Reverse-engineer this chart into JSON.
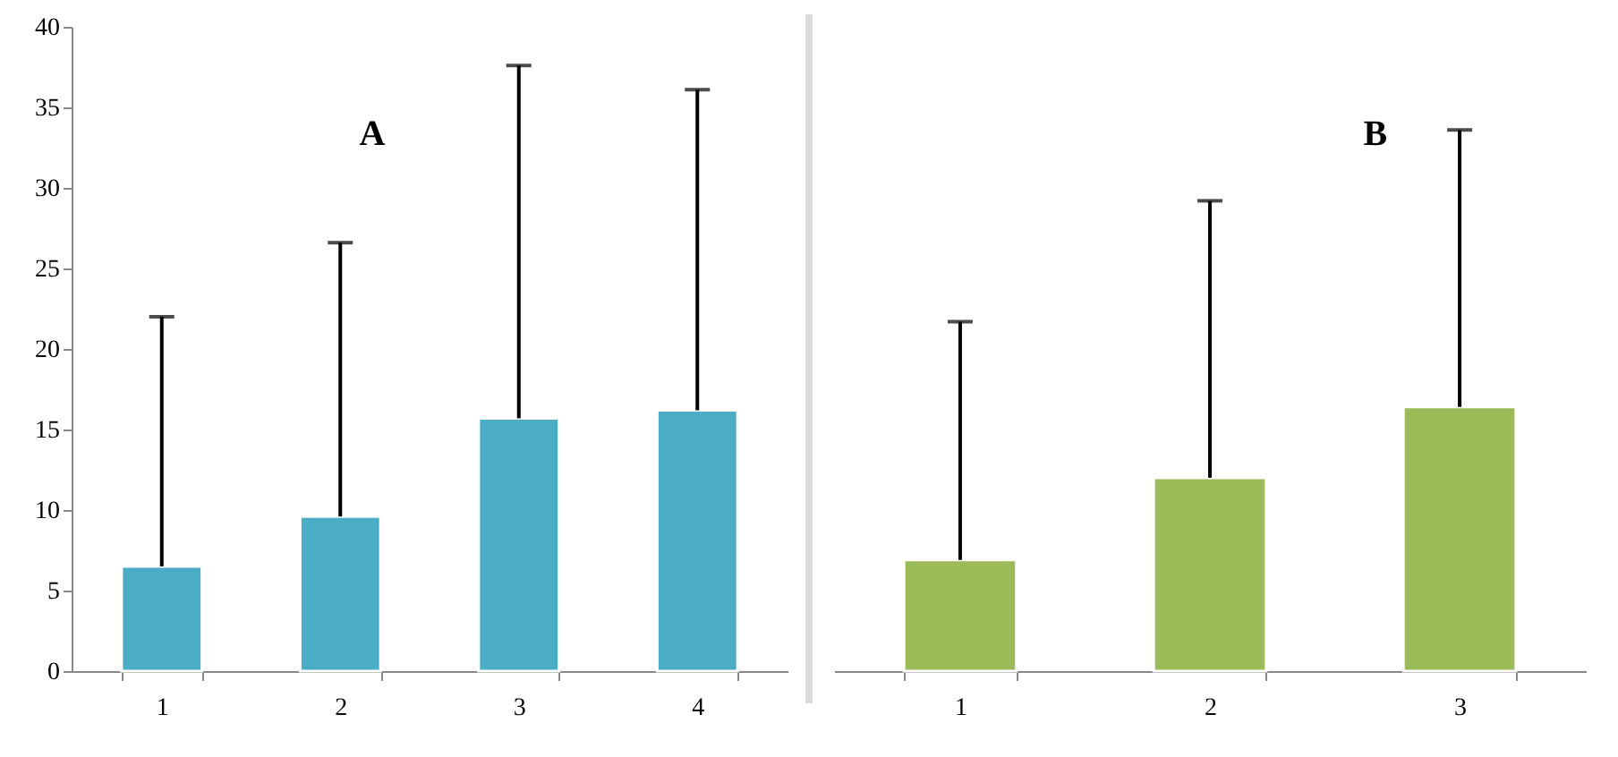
{
  "chart_data": [
    {
      "type": "bar",
      "categories": [
        "1",
        "2",
        "3",
        "4"
      ],
      "series": [
        {
          "color": "#4bacc6",
          "values": [
            6.5,
            9.6,
            15.7,
            16.2
          ],
          "errors": [
            [
              6.5,
              22.0
            ],
            [
              9.6,
              26.6
            ],
            [
              15.7,
              37.6
            ],
            [
              16.2,
              36.1
            ]
          ]
        }
      ],
      "ylim": [
        0,
        40
      ],
      "yticks": [
        0,
        5,
        10,
        15,
        20,
        25,
        30,
        35,
        40
      ],
      "annotations": [
        "A"
      ],
      "grid": false
    },
    {
      "type": "bar",
      "categories": [
        "1",
        "2",
        "3"
      ],
      "series": [
        {
          "color": "#9bbb59",
          "values": [
            6.9,
            12.0,
            16.4
          ],
          "errors": [
            [
              6.9,
              21.7
            ],
            [
              12.0,
              29.2
            ],
            [
              16.4,
              33.6
            ]
          ]
        }
      ],
      "ylim": [
        0,
        40
      ],
      "yticks": [
        0,
        5,
        10,
        15,
        20,
        25,
        30,
        35,
        40
      ],
      "tick_labels": "x",
      "annotations": [
        "B"
      ],
      "grid": false
    }
  ]
}
